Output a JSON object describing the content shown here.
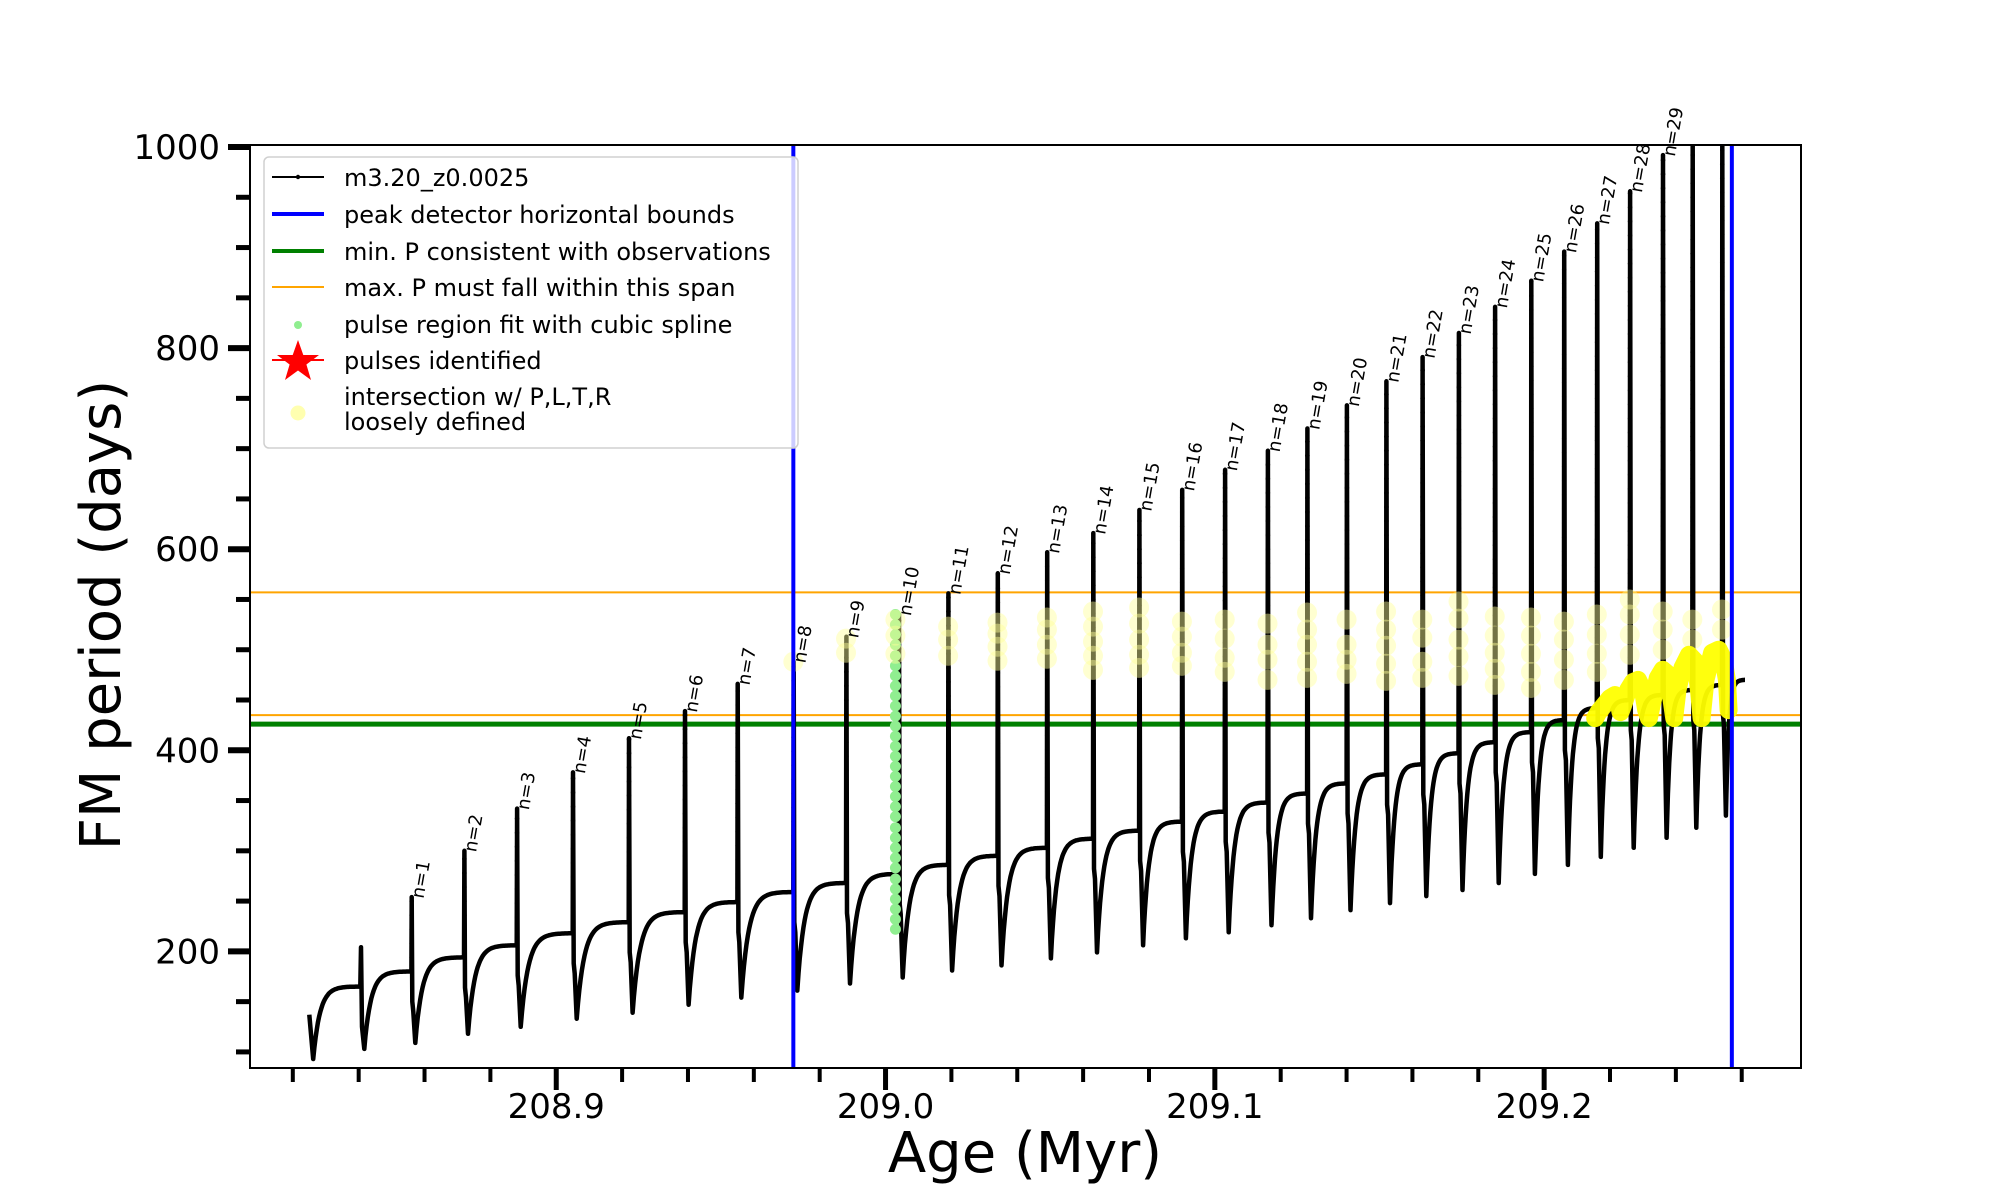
{
  "chart_data": {
    "type": "line",
    "title": "",
    "xlabel": "Age (Myr)",
    "ylabel": "FM period (days)",
    "xlim": [
      208.807,
      209.278
    ],
    "ylim": [
      84,
      1002
    ],
    "x_ticks": [
      208.9,
      209.0,
      209.1,
      209.2
    ],
    "x_tick_labels": [
      "208.9",
      "209.0",
      "209.1",
      "209.2"
    ],
    "x_minor_step": 0.02,
    "y_ticks": [
      200,
      400,
      600,
      800,
      1000
    ],
    "y_tick_labels": [
      "200",
      "400",
      "600",
      "800",
      "1000"
    ],
    "y_minor_step": 50,
    "grid": false,
    "legend": {
      "placement": "upper-left",
      "entries": [
        {
          "label": "m3.20_z0.0025",
          "marker": "line-dot",
          "color": "#000000"
        },
        {
          "label": "peak detector horizontal bounds",
          "marker": "thick-line",
          "color": "#0000ff"
        },
        {
          "label": "min. P consistent with observations",
          "marker": "thick-line",
          "color": "#008000"
        },
        {
          "label": "max. P must fall within this span",
          "marker": "thin-line",
          "color": "#ffa500"
        },
        {
          "label": "pulse region fit with cubic spline",
          "marker": "dot",
          "color": "#90ee90"
        },
        {
          "label": "pulses identified",
          "marker": "star",
          "color": "#ff0000"
        },
        {
          "label": "intersection w/ P,L,T,R",
          "label2": "loosely defined",
          "marker": "circle",
          "color": "#ffffb0"
        }
      ]
    },
    "track": {
      "name": "m3.20_z0.0025",
      "color": "#000000",
      "start": {
        "age": 208.825,
        "P": 137
      },
      "first_min": {
        "age": 208.8262,
        "P": 93
      },
      "pre_pulse": {
        "age": 208.8405,
        "plateau": 165,
        "peak": 204,
        "trough": 103
      },
      "pulses": [
        {
          "label": "n=1",
          "age": 208.856,
          "plateau": 180,
          "peak": 254,
          "trough": 109
        },
        {
          "label": "n=2",
          "age": 208.872,
          "plateau": 194,
          "peak": 300,
          "trough": 118
        },
        {
          "label": "n=3",
          "age": 208.888,
          "plateau": 206,
          "peak": 342,
          "trough": 125
        },
        {
          "label": "n=4",
          "age": 208.905,
          "plateau": 218,
          "peak": 378,
          "trough": 133
        },
        {
          "label": "n=5",
          "age": 208.922,
          "plateau": 229,
          "peak": 412,
          "trough": 139
        },
        {
          "label": "n=6",
          "age": 208.939,
          "plateau": 239,
          "peak": 439,
          "trough": 147
        },
        {
          "label": "n=7",
          "age": 208.955,
          "plateau": 249,
          "peak": 466,
          "trough": 154
        },
        {
          "label": "n=8",
          "age": 208.972,
          "plateau": 259,
          "peak": 488,
          "trough": 161
        },
        {
          "label": "n=9",
          "age": 208.988,
          "plateau": 268,
          "peak": 513,
          "trough": 168
        },
        {
          "label": "n=10",
          "age": 209.004,
          "plateau": 277,
          "peak": 535,
          "trough": 174
        },
        {
          "label": "n=11",
          "age": 209.019,
          "plateau": 286,
          "peak": 556,
          "trough": 181
        },
        {
          "label": "n=12",
          "age": 209.034,
          "plateau": 295,
          "peak": 576,
          "trough": 186
        },
        {
          "label": "n=13",
          "age": 209.049,
          "plateau": 303,
          "peak": 597,
          "trough": 193
        },
        {
          "label": "n=14",
          "age": 209.063,
          "plateau": 312,
          "peak": 616,
          "trough": 199
        },
        {
          "label": "n=15",
          "age": 209.077,
          "plateau": 320,
          "peak": 639,
          "trough": 206
        },
        {
          "label": "n=16",
          "age": 209.09,
          "plateau": 329,
          "peak": 659,
          "trough": 213
        },
        {
          "label": "n=17",
          "age": 209.103,
          "plateau": 339,
          "peak": 679,
          "trough": 219
        },
        {
          "label": "n=18",
          "age": 209.116,
          "plateau": 348,
          "peak": 698,
          "trough": 226
        },
        {
          "label": "n=19",
          "age": 209.128,
          "plateau": 357,
          "peak": 720,
          "trough": 233
        },
        {
          "label": "n=20",
          "age": 209.14,
          "plateau": 367,
          "peak": 743,
          "trough": 241
        },
        {
          "label": "n=21",
          "age": 209.152,
          "plateau": 376,
          "peak": 767,
          "trough": 248
        },
        {
          "label": "n=22",
          "age": 209.163,
          "plateau": 386,
          "peak": 791,
          "trough": 255
        },
        {
          "label": "n=23",
          "age": 209.174,
          "plateau": 397,
          "peak": 815,
          "trough": 261
        },
        {
          "label": "n=24",
          "age": 209.185,
          "plateau": 408,
          "peak": 841,
          "trough": 268
        },
        {
          "label": "n=25",
          "age": 209.196,
          "plateau": 418,
          "peak": 867,
          "trough": 277
        },
        {
          "label": "n=26",
          "age": 209.206,
          "plateau": 430,
          "peak": 896,
          "trough": 286
        },
        {
          "label": "n=27",
          "age": 209.216,
          "plateau": 442,
          "peak": 924,
          "trough": 294
        },
        {
          "label": "n=28",
          "age": 209.226,
          "plateau": 450,
          "peak": 956,
          "trough": 303
        },
        {
          "label": "n=29",
          "age": 209.236,
          "plateau": 455,
          "peak": 992,
          "trough": 313
        },
        {
          "label": "",
          "age": 209.245,
          "plateau": 460,
          "peak": 1010,
          "trough": 323
        },
        {
          "label": "",
          "age": 209.254,
          "plateau": 465,
          "peak": 1010,
          "trough": 335
        }
      ]
    },
    "vertical_lines": [
      {
        "name": "peak detector horizontal bounds",
        "age": 208.972,
        "color": "#0000ff"
      },
      {
        "name": "peak detector horizontal bounds",
        "age": 209.257,
        "color": "#0000ff"
      }
    ],
    "horizontal_lines": [
      {
        "name": "max. P must fall within this span (upper)",
        "P": 557,
        "color": "#ffa500"
      },
      {
        "name": "max. P must fall within this span (lower)",
        "P": 435,
        "color": "#ffa500"
      },
      {
        "name": "min. P consistent with observations",
        "P": 426,
        "color": "#008000"
      }
    ],
    "spline_points": {
      "color": "#90ee90",
      "age": 209.003,
      "P": [
        222,
        232,
        242,
        252,
        262,
        272,
        283,
        293,
        303,
        313,
        323,
        334,
        344,
        354,
        364,
        374,
        384,
        394,
        404,
        414,
        424,
        434,
        444,
        454,
        464,
        474,
        484,
        494,
        505,
        515,
        525,
        535
      ]
    },
    "intersection_points": {
      "color": "#ffff99",
      "groups": [
        {
          "age": 208.972,
          "P": [
            488
          ]
        },
        {
          "age": 208.988,
          "P": [
            497,
            511
          ]
        },
        {
          "age": 209.003,
          "P": [
            496,
            514,
            530
          ]
        },
        {
          "age": 209.019,
          "P": [
            494,
            510,
            523
          ]
        },
        {
          "age": 209.034,
          "P": [
            489,
            503,
            516,
            527
          ]
        },
        {
          "age": 209.049,
          "P": [
            491,
            505,
            520,
            532
          ]
        },
        {
          "age": 209.063,
          "P": [
            480,
            494,
            508,
            523,
            538
          ]
        },
        {
          "age": 209.077,
          "P": [
            482,
            495,
            510,
            526,
            542
          ]
        },
        {
          "age": 209.09,
          "P": [
            484,
            497,
            513,
            528
          ]
        },
        {
          "age": 209.103,
          "P": [
            478,
            492,
            511,
            530
          ]
        },
        {
          "age": 209.116,
          "P": [
            470,
            490,
            505,
            526
          ]
        },
        {
          "age": 209.128,
          "P": [
            472,
            488,
            505,
            520,
            537
          ]
        },
        {
          "age": 209.14,
          "P": [
            476,
            490,
            505,
            530
          ]
        },
        {
          "age": 209.152,
          "P": [
            469,
            486,
            504,
            520,
            538
          ]
        },
        {
          "age": 209.163,
          "P": [
            472,
            488,
            512,
            530
          ]
        },
        {
          "age": 209.174,
          "P": [
            474,
            493,
            510,
            531,
            548
          ]
        },
        {
          "age": 209.185,
          "P": [
            465,
            481,
            497,
            514,
            533
          ]
        },
        {
          "age": 209.196,
          "P": [
            462,
            478,
            496,
            514,
            532
          ]
        },
        {
          "age": 209.206,
          "P": [
            470,
            490,
            510,
            528
          ]
        },
        {
          "age": 209.216,
          "P": [
            478,
            496,
            515,
            535
          ]
        },
        {
          "age": 209.226,
          "P": [
            495,
            515,
            535,
            550
          ]
        },
        {
          "age": 209.236,
          "P": [
            500,
            520,
            538
          ]
        },
        {
          "age": 209.245,
          "P": [
            510,
            530
          ]
        },
        {
          "age": 209.254,
          "P": [
            520,
            540
          ]
        }
      ]
    },
    "intersection_track": {
      "color": "#ffff00",
      "points": [
        [
          209.2155,
          432
        ],
        [
          209.2165,
          438
        ],
        [
          209.2185,
          446
        ],
        [
          209.22,
          452
        ],
        [
          209.2215,
          455
        ],
        [
          209.2225,
          450
        ],
        [
          209.2232,
          438
        ],
        [
          209.224,
          445
        ],
        [
          209.2255,
          460
        ],
        [
          209.227,
          468
        ],
        [
          209.2285,
          470
        ],
        [
          209.23,
          460
        ],
        [
          209.231,
          440
        ],
        [
          209.2318,
          432
        ],
        [
          209.233,
          450
        ],
        [
          209.2345,
          472
        ],
        [
          209.236,
          480
        ],
        [
          209.2375,
          476
        ],
        [
          209.2385,
          455
        ],
        [
          209.2395,
          432
        ],
        [
          209.2405,
          460
        ],
        [
          209.242,
          482
        ],
        [
          209.244,
          495
        ],
        [
          209.246,
          488
        ],
        [
          209.247,
          460
        ],
        [
          209.2478,
          432
        ],
        [
          209.249,
          470
        ],
        [
          209.251,
          497
        ],
        [
          209.253,
          500
        ],
        [
          209.2545,
          490
        ],
        [
          209.2555,
          470
        ],
        [
          209.256,
          440
        ]
      ]
    }
  }
}
